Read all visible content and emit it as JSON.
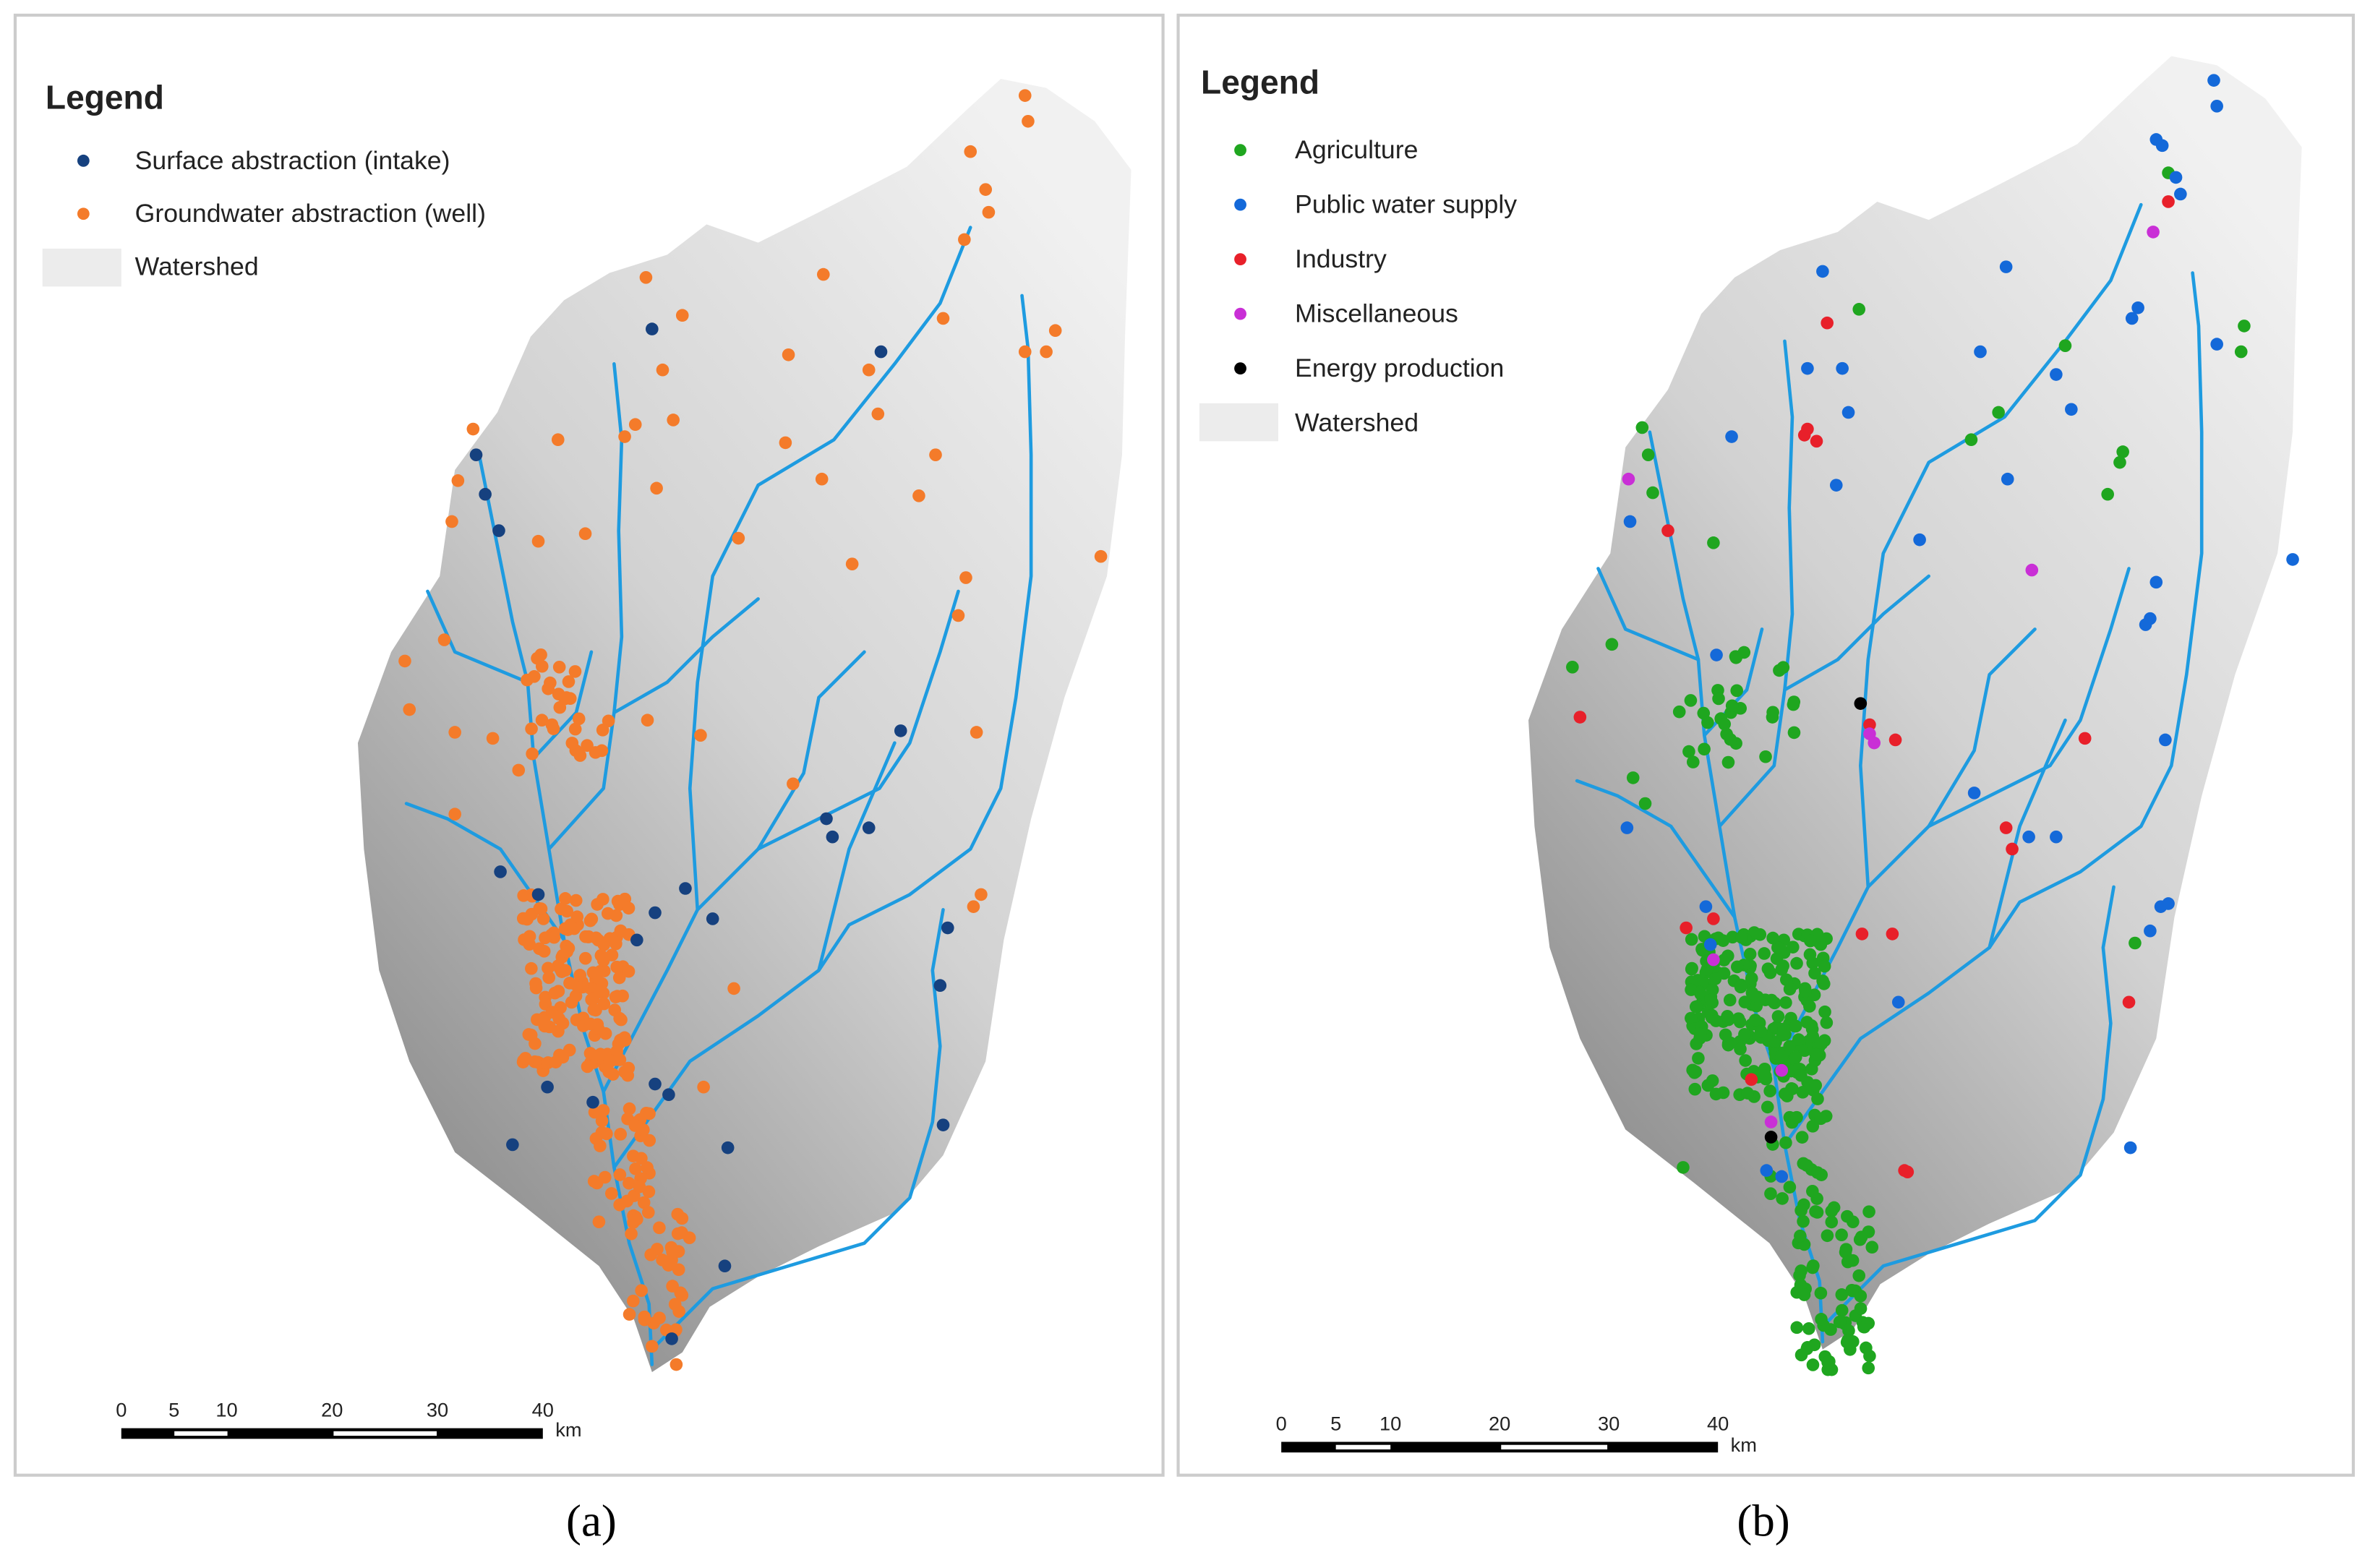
{
  "panels": [
    {
      "label": "(a)",
      "legend": {
        "title": "Legend",
        "items": [
          "Surface abstraction (intake)",
          "Groundwater abstraction (well)",
          "Watershed"
        ]
      },
      "scale_bar": {
        "ticks": [
          0,
          5,
          10,
          20,
          30,
          40
        ],
        "unit": "km"
      }
    },
    {
      "label": "(b)",
      "legend": {
        "title": "Legend",
        "items": [
          "Agriculture",
          "Public water supply",
          "Industry",
          "Miscellaneous",
          "Energy production",
          "Watershed"
        ]
      },
      "scale_bar": {
        "ticks": [
          0,
          5,
          10,
          20,
          30,
          40
        ],
        "unit": "km"
      }
    }
  ]
}
